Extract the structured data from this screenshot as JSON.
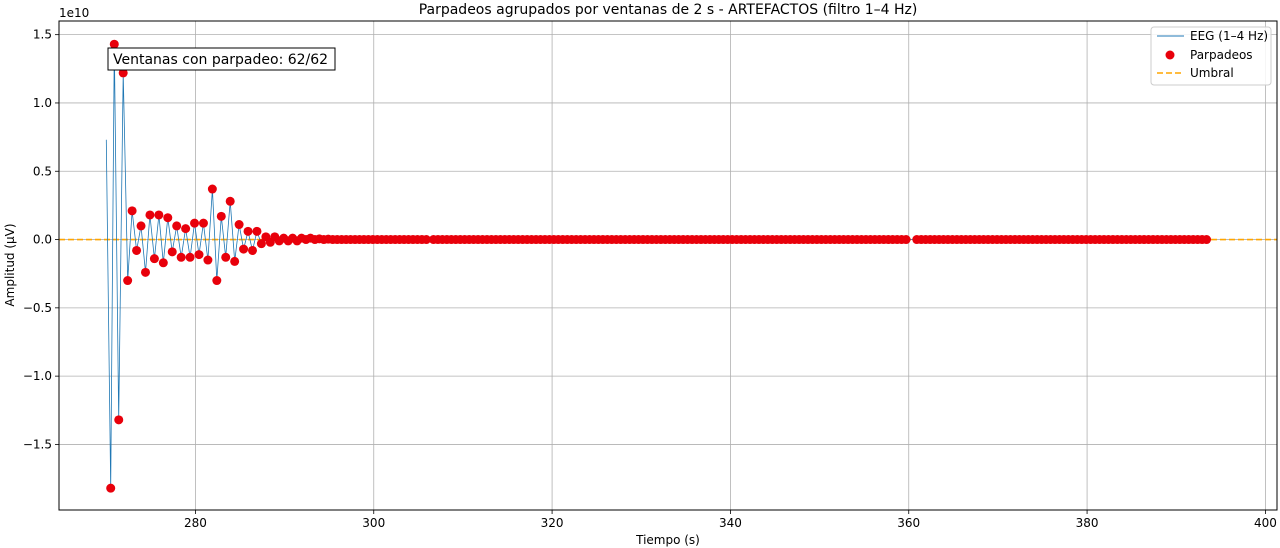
{
  "chart_data": {
    "type": "line",
    "title": "Parpadeos agrupados por ventanas de 2 s - ARTEFACTOS (filtro 1–4 Hz)",
    "xlabel": "Tiempo (s)",
    "ylabel": "Amplitud (µV)",
    "y_offset_label": "1e10",
    "y_scale": 10000000000,
    "xlim": [
      264.7,
      401.3
    ],
    "ylim": [
      -1.98,
      1.6
    ],
    "x_ticks": [
      280,
      300,
      320,
      340,
      360,
      380,
      400
    ],
    "x_tick_labels": [
      "280",
      "300",
      "320",
      "340",
      "360",
      "380",
      "400"
    ],
    "y_ticks": [
      -1.5,
      -1.0,
      -0.5,
      0.0,
      0.5,
      1.0,
      1.5
    ],
    "y_tick_labels": [
      "−1.5",
      "−1.0",
      "−0.5",
      "0.0",
      "0.5",
      "1.0",
      "1.5"
    ],
    "grid": true,
    "legend_position": "top-right",
    "threshold_value": 0.0,
    "annotation": "Ventanas con parpadeo: 62/62",
    "colors": {
      "eeg": "#1f77b4",
      "blinks": "#e8000b",
      "threshold": "#ffa500",
      "grid": "#b0b0b0"
    },
    "series": [
      {
        "name": "EEG (1–4 Hz)",
        "kind": "line",
        "x": [
          270.0,
          270.5,
          270.9,
          271.4,
          271.9,
          272.4,
          272.9,
          273.4,
          273.9,
          274.4,
          274.9,
          275.4,
          275.9,
          276.4,
          276.9,
          277.4,
          277.9,
          278.4,
          278.9,
          279.4,
          279.9,
          280.4,
          280.9,
          281.4,
          281.9,
          282.4,
          282.9,
          283.4,
          283.9,
          284.4,
          284.9,
          285.4,
          285.9,
          286.4,
          286.9,
          287.4,
          287.9,
          288.4,
          288.9,
          289.4,
          289.9,
          290.4,
          290.9,
          291.4,
          291.9,
          292.4,
          292.9,
          293.4,
          293.9,
          294.4,
          294.9,
          296.0,
          300.0,
          305.0,
          310.0,
          320.0,
          330.0,
          340.0,
          350.0,
          360.0,
          370.0,
          380.0,
          390.0,
          393.8
        ],
        "y": [
          0.73,
          -1.82,
          1.43,
          -1.32,
          1.22,
          -0.3,
          0.21,
          -0.08,
          0.1,
          -0.24,
          0.18,
          -0.14,
          0.18,
          -0.17,
          0.16,
          -0.09,
          0.1,
          -0.13,
          0.08,
          -0.13,
          0.12,
          -0.11,
          0.12,
          -0.15,
          0.37,
          -0.3,
          0.17,
          -0.13,
          0.28,
          -0.16,
          0.11,
          -0.07,
          0.06,
          -0.08,
          0.06,
          -0.03,
          0.02,
          -0.02,
          0.02,
          -0.01,
          0.01,
          -0.01,
          0.01,
          -0.01,
          0.01,
          0.0,
          0.01,
          0.0,
          0.005,
          0.0,
          0.003,
          0.0,
          0.0,
          0.0,
          0.0,
          0.0,
          0.0,
          0.0,
          0.0,
          0.0,
          0.0,
          0.0,
          0.0,
          0.0
        ]
      },
      {
        "name": "Parpadeos",
        "kind": "scatter",
        "x": [
          270.5,
          270.9,
          271.4,
          271.9,
          272.4,
          272.9,
          273.4,
          273.9,
          274.4,
          274.9,
          275.4,
          275.9,
          276.4,
          276.9,
          277.4,
          277.9,
          278.4,
          278.9,
          279.4,
          279.9,
          280.4,
          280.9,
          281.4,
          281.9,
          282.4,
          282.9,
          283.4,
          283.9,
          284.4,
          284.9,
          285.4,
          285.9,
          286.4,
          286.9,
          287.4,
          287.9,
          288.4,
          288.9,
          289.4,
          289.9,
          290.4,
          290.9,
          291.4,
          291.9,
          292.4,
          292.9,
          293.4,
          293.9,
          294.4,
          294.9
        ],
        "y": [
          -1.82,
          1.43,
          -1.32,
          1.22,
          -0.3,
          0.21,
          -0.08,
          0.1,
          -0.24,
          0.18,
          -0.14,
          0.18,
          -0.17,
          0.16,
          -0.09,
          0.1,
          -0.13,
          0.08,
          -0.13,
          0.12,
          -0.11,
          0.12,
          -0.15,
          0.37,
          -0.3,
          0.17,
          -0.13,
          0.28,
          -0.16,
          0.11,
          -0.07,
          0.06,
          -0.08,
          0.06,
          -0.03,
          0.02,
          -0.02,
          0.02,
          -0.01,
          0.01,
          -0.01,
          0.01,
          -0.01,
          0.01,
          0.0,
          0.01,
          0.0,
          0.005,
          0.0,
          0.003
        ],
        "flat_ranges": [
          [
            295.4,
            306.3,
            0.5
          ],
          [
            306.7,
            359.9,
            0.5
          ],
          [
            360.9,
            393.8,
            0.5
          ]
        ]
      },
      {
        "name": "Umbral",
        "kind": "hline",
        "y": 0.0
      }
    ]
  }
}
